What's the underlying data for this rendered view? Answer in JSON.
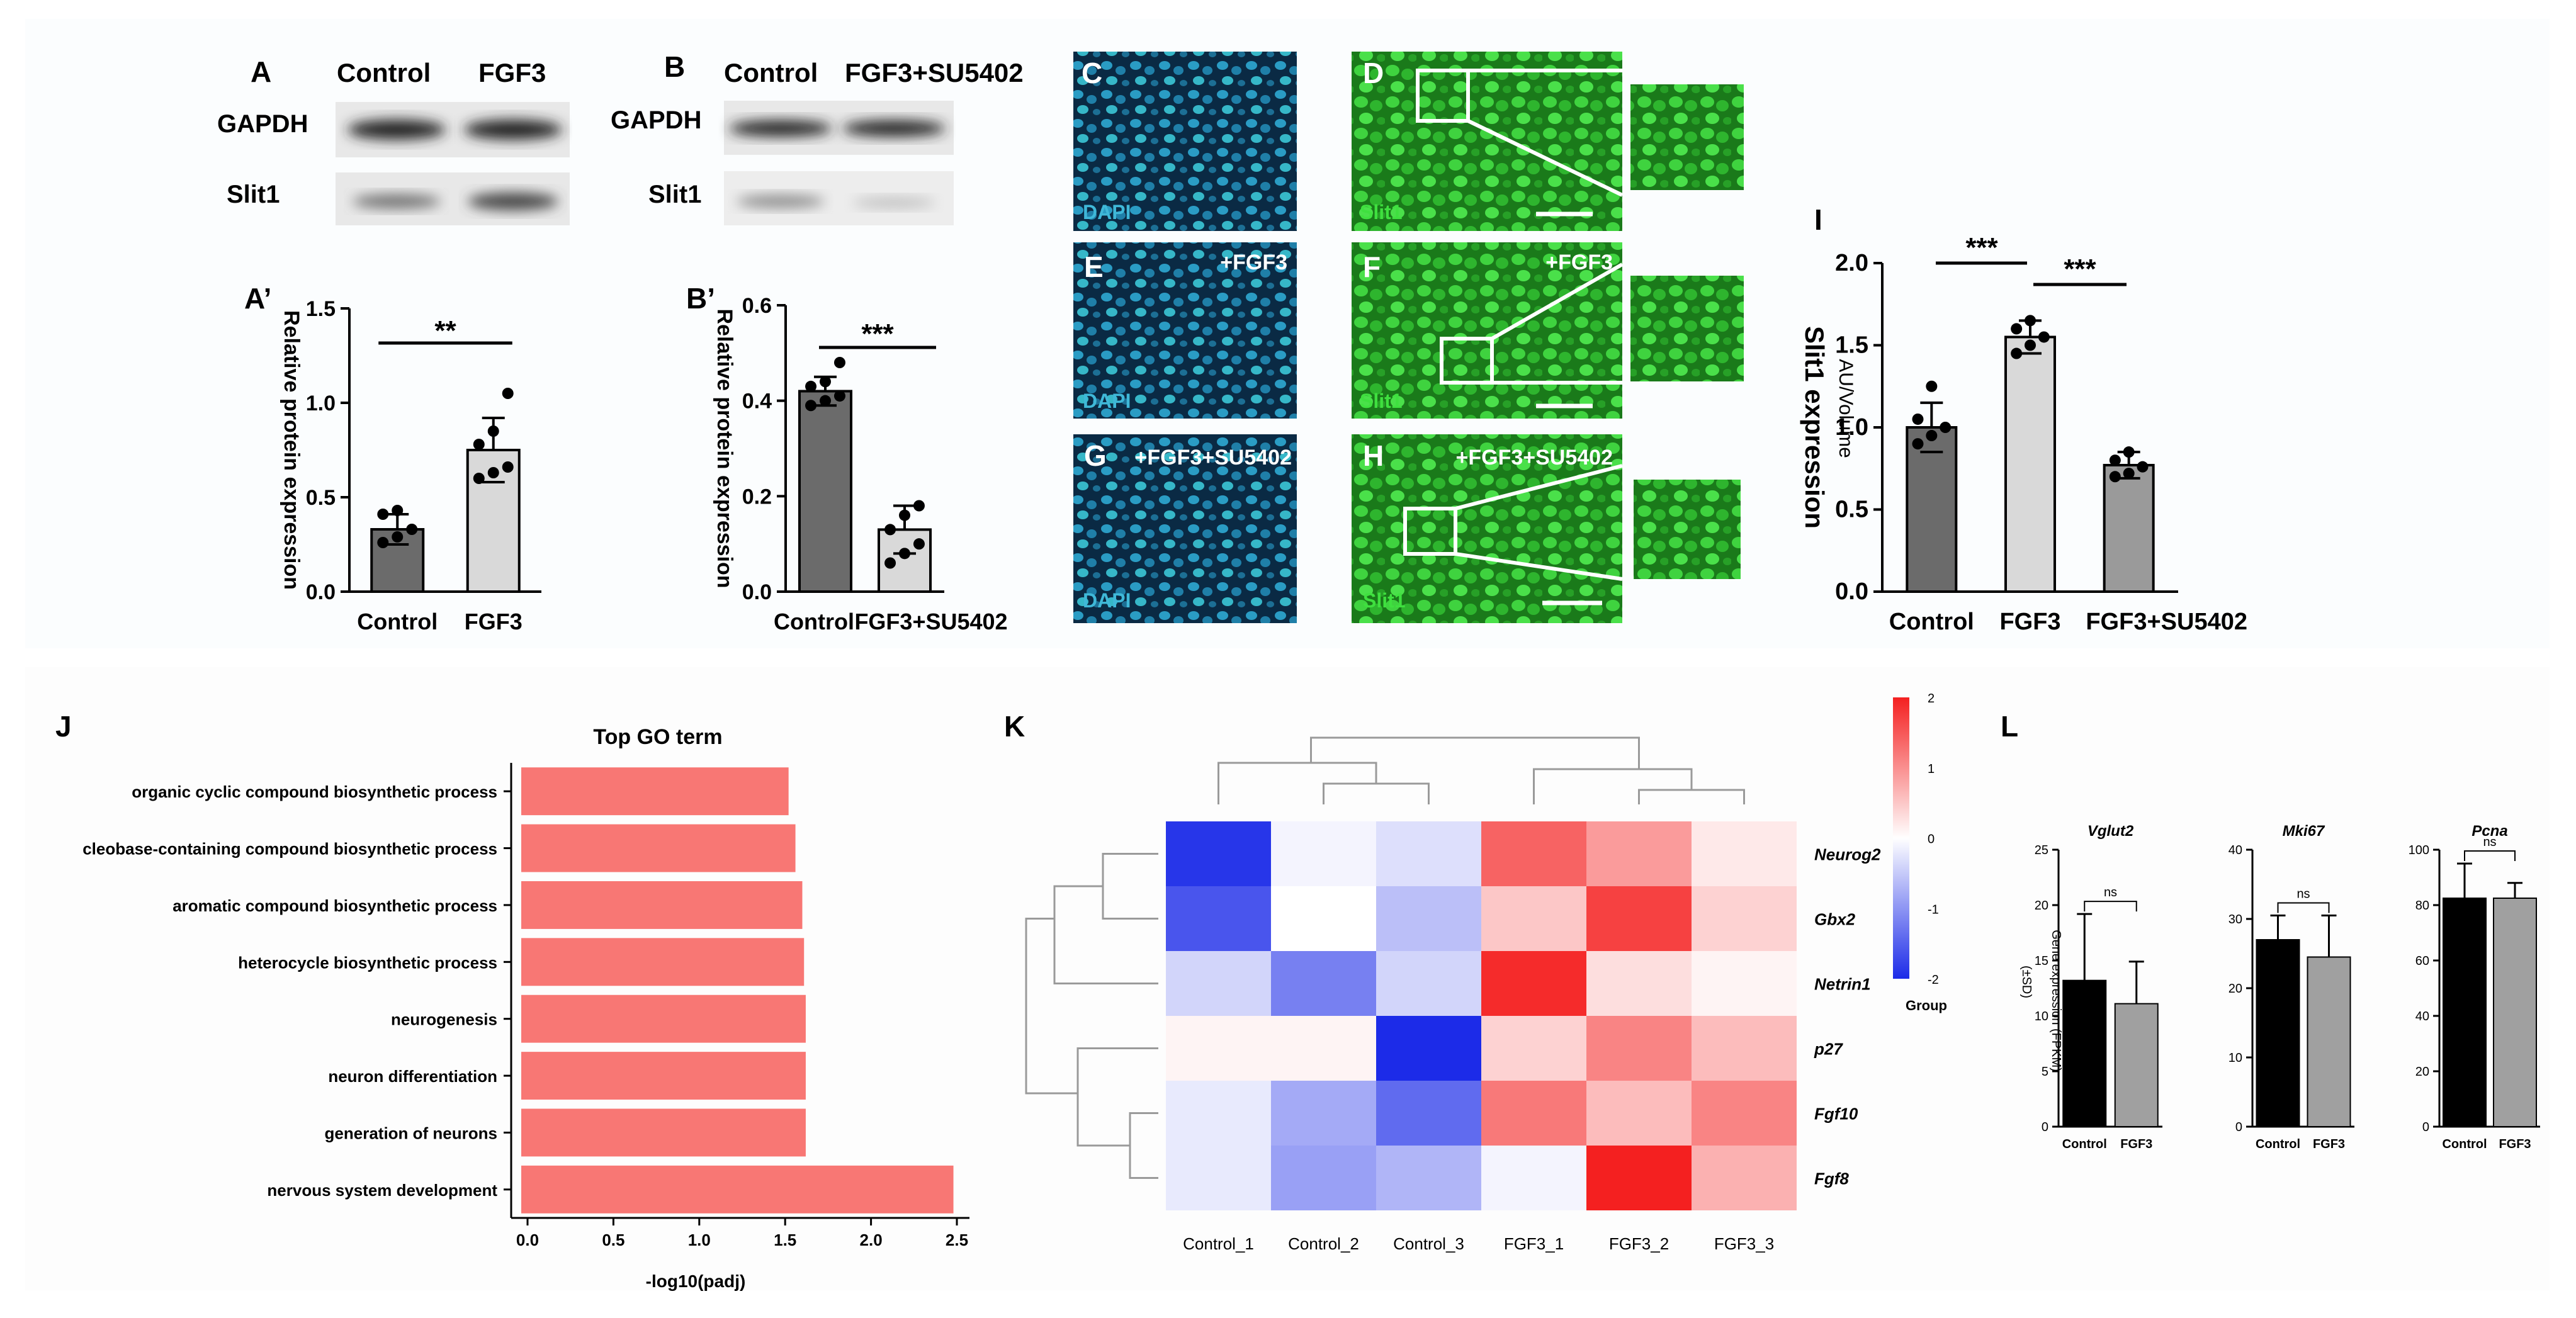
{
  "panels": {
    "A": {
      "letter": "A",
      "columns": [
        "Control",
        "FGF3"
      ],
      "rows": [
        "GAPDH",
        "Slit1"
      ]
    },
    "B": {
      "letter": "B",
      "columns": [
        "Control",
        "FGF3+SU5402"
      ],
      "rows": [
        "GAPDH",
        "Slit1"
      ]
    },
    "images": [
      {
        "letter": "C",
        "label": "DAPI",
        "condition": "",
        "color": "#1f6b9a"
      },
      {
        "letter": "D",
        "label": "Slit1",
        "condition": "",
        "color": "#36c43a"
      },
      {
        "letter": "E",
        "label": "DAPI",
        "condition": "+FGF3",
        "color": "#1f6b9a"
      },
      {
        "letter": "F",
        "label": "Slit1",
        "condition": "+FGF3",
        "color": "#36c43a"
      },
      {
        "letter": "G",
        "label": "DAPI",
        "condition": "+FGF3+SU5402",
        "color": "#1f6b9a"
      },
      {
        "letter": "H",
        "label": "Slit1",
        "condition": "+FGF3+SU5402",
        "color": "#36c43a"
      }
    ],
    "J_letter": "J",
    "K_letter": "K",
    "L_letter": "L"
  },
  "chart_data": [
    {
      "id": "A_prime",
      "letter": "A’",
      "type": "bar",
      "categories": [
        "Control",
        "FGF3"
      ],
      "values": [
        0.33,
        0.75
      ],
      "errors": [
        0.08,
        0.17
      ],
      "points": [
        [
          0.26,
          0.29,
          0.33,
          0.41,
          0.43
        ],
        [
          0.6,
          0.63,
          0.66,
          0.78,
          0.85,
          1.05
        ]
      ],
      "colors": [
        "#6b6b6b",
        "#d9d9d9"
      ],
      "ylabel": "Relative protein expression",
      "ylim": [
        0,
        1.5
      ],
      "yticks": [
        "0.0",
        "0.5",
        "1.0",
        "1.5"
      ],
      "significance": "**"
    },
    {
      "id": "B_prime",
      "letter": "B’",
      "type": "bar",
      "categories": [
        "Control",
        "FGF3+SU5402"
      ],
      "values": [
        0.42,
        0.13
      ],
      "errors": [
        0.03,
        0.05
      ],
      "points": [
        [
          0.39,
          0.4,
          0.41,
          0.43,
          0.44,
          0.48
        ],
        [
          0.06,
          0.08,
          0.1,
          0.13,
          0.16,
          0.18
        ]
      ],
      "colors": [
        "#6b6b6b",
        "#d9d9d9"
      ],
      "ylabel": "Relative protein expression",
      "ylim": [
        0,
        0.6
      ],
      "yticks": [
        "0.0",
        "0.2",
        "0.4",
        "0.6"
      ],
      "significance": "***"
    },
    {
      "id": "I",
      "letter": "I",
      "type": "bar",
      "categories": [
        "Control",
        "FGF3",
        "FGF3+SU5402"
      ],
      "values": [
        1.0,
        1.55,
        0.77
      ],
      "errors": [
        0.15,
        0.1,
        0.08
      ],
      "points": [
        [
          0.9,
          0.95,
          1.0,
          1.05,
          1.25
        ],
        [
          1.45,
          1.5,
          1.55,
          1.6,
          1.65
        ],
        [
          0.7,
          0.72,
          0.76,
          0.8,
          0.85
        ]
      ],
      "colors": [
        "#6b6b6b",
        "#d9d9d9",
        "#9a9a9a"
      ],
      "ylabel": "Slit1 expression",
      "ylabel2": "AU/Volume",
      "ylim": [
        0,
        2.0
      ],
      "yticks": [
        "0.0",
        "0.5",
        "1.0",
        "1.5",
        "2.0"
      ],
      "significance": [
        "***",
        "***"
      ]
    },
    {
      "id": "J",
      "type": "bar",
      "orientation": "horizontal",
      "title": "Top GO term",
      "categories": [
        "organic cyclic compound biosynthetic process",
        "cleobase-containing compound biosynthetic process",
        "aromatic compound biosynthetic process",
        "heterocycle biosynthetic process",
        "neurogenesis",
        "neuron differentiation",
        "generation of neurons",
        "nervous system development"
      ],
      "values": [
        1.52,
        1.56,
        1.6,
        1.61,
        1.62,
        1.62,
        1.62,
        2.48
      ],
      "color": "#f87774",
      "xlabel": "-log10(padj)",
      "xlim": [
        0,
        2.5
      ],
      "xticks": [
        "0.0",
        "0.5",
        "1.0",
        "1.5",
        "2.0",
        "2.5"
      ]
    },
    {
      "id": "K",
      "type": "heatmap",
      "columns": [
        "Control_1",
        "Control_2",
        "Control_3",
        "FGF3_1",
        "FGF3_2",
        "FGF3_3"
      ],
      "rows": [
        "Neurog2",
        "Gbx2",
        "Netrin1",
        "p27",
        "Fgf10",
        "Fgf8"
      ],
      "values": [
        [
          -1.9,
          -0.1,
          -0.3,
          1.4,
          0.9,
          0.2
        ],
        [
          -1.6,
          0.0,
          -0.6,
          0.5,
          1.7,
          0.4
        ],
        [
          -0.4,
          -1.2,
          -0.4,
          1.9,
          0.3,
          0.1
        ],
        [
          0.1,
          0.1,
          -2.0,
          0.4,
          1.1,
          0.6
        ],
        [
          -0.2,
          -0.8,
          -1.4,
          1.2,
          0.6,
          1.1
        ],
        [
          -0.2,
          -0.9,
          -0.7,
          -0.1,
          2.0,
          0.7
        ]
      ],
      "scale": {
        "min": -2,
        "max": 2,
        "ticks": [
          "2",
          "1",
          "0",
          "-1",
          "-2"
        ],
        "label": "Group"
      },
      "colors": {
        "low": "#1c2be8",
        "mid": "#ffffff",
        "high": "#f42020"
      }
    },
    {
      "id": "L",
      "type": "bar",
      "ylabel": "Gene expression (FPKM)",
      "ylabel2": "(±SD)",
      "subplots": [
        {
          "title": "Vglut2",
          "categories": [
            "Control",
            "FGF3"
          ],
          "values": [
            13.2,
            11.1
          ],
          "errors": [
            6.0,
            3.8
          ],
          "ylim": [
            0,
            25
          ],
          "yticks": [
            "0",
            "5",
            "10",
            "15",
            "20",
            "25"
          ],
          "significance": "ns"
        },
        {
          "title": "Mki67",
          "categories": [
            "Control",
            "FGF3"
          ],
          "values": [
            27.0,
            24.5
          ],
          "errors": [
            3.5,
            6.0
          ],
          "ylim": [
            0,
            40
          ],
          "yticks": [
            "0",
            "10",
            "20",
            "30",
            "40"
          ],
          "significance": "ns"
        },
        {
          "title": "Pcna",
          "categories": [
            "Control",
            "FGF3"
          ],
          "values": [
            82.5,
            82.5
          ],
          "errors": [
            12.5,
            5.5
          ],
          "ylim": [
            0,
            100
          ],
          "yticks": [
            "0",
            "20",
            "40",
            "60",
            "80",
            "100"
          ],
          "significance": "ns"
        }
      ],
      "colors": [
        "#000000",
        "#a0a0a0"
      ]
    }
  ]
}
